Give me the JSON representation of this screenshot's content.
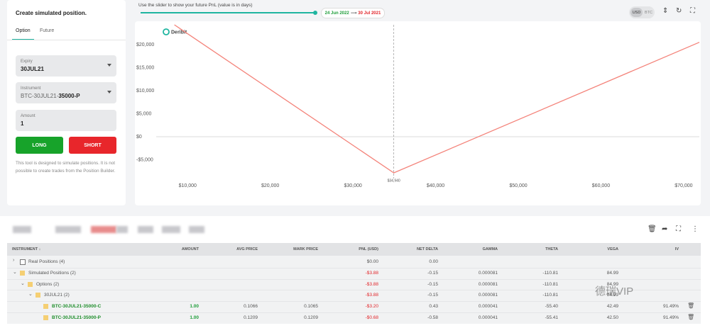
{
  "left_panel": {
    "title": "Create simulated position.",
    "tabs": [
      "Option",
      "Future"
    ],
    "fields": [
      {
        "label": "Expiry",
        "value": "30JUL21"
      },
      {
        "label": "Instrument",
        "value": [
          "BTC-30JUL21-",
          "35000-P"
        ]
      },
      {
        "label": "Amount",
        "value": 1
      }
    ],
    "buttons": [
      "LONG",
      "SHORT"
    ],
    "note": "This tool is designed to simulate positions. It is not possible to create trades from the Position Builder."
  },
  "slider": {
    "hint": "Use the slider to show your future PnL (value is in days)",
    "from": "24 Jun 2022",
    "to": "30 Jul 2021"
  },
  "currency_toggle": [
    "USD",
    "BTC"
  ],
  "chart_data": {
    "type": "line",
    "logo": "Deribit",
    "x": [
      8400,
      34940,
      71900
    ],
    "series": [
      {
        "color": "#f4837a",
        "values": [
          24300,
          -7850,
          20500
        ]
      }
    ],
    "xlim": [
      6200,
      71900
    ],
    "ylim": [
      -9080,
      24300
    ],
    "xticks": [
      {
        "value": 10000,
        "label": "$10,000"
      },
      {
        "value": 20000,
        "label": "$20,000"
      },
      {
        "value": 30000,
        "label": "$30,000"
      },
      {
        "value": 40000,
        "label": "$40,000"
      },
      {
        "value": 50000,
        "label": "$50,000"
      },
      {
        "value": 60000,
        "label": "$60,000"
      },
      {
        "value": 70000,
        "label": "$70,000"
      }
    ],
    "yticks": [
      {
        "value": 20000,
        "label": "$20,000"
      },
      {
        "value": 15000,
        "label": "$15,000"
      },
      {
        "value": 10000,
        "label": "$10,000"
      },
      {
        "value": 5000,
        "label": "$5,000"
      },
      {
        "value": 0,
        "label": "$0"
      },
      {
        "value": -5000,
        "label": "-$5,000"
      }
    ],
    "marker": {
      "value": 34940,
      "label": "$34,940"
    }
  },
  "table": {
    "columns": [
      "INSTRUMENT",
      "AMOUNT",
      "AVG PRICE",
      "MARK PRICE",
      "PNL (USD)",
      "NET DELTA",
      "GAMMA",
      "THETA",
      "VEGA",
      "IV"
    ],
    "rows": [
      {
        "label": "Real Positions (4)",
        "cells": [
          null,
          null,
          null,
          "$0.00",
          "0.00",
          null,
          null,
          null,
          null
        ]
      },
      {
        "label": "Simulated Positions (2)",
        "cells": [
          null,
          null,
          null,
          "-$3.88",
          "-0.15",
          "0.000081",
          "-110.81",
          "84.99",
          null
        ]
      },
      {
        "label": "Options (2)",
        "cells": [
          null,
          null,
          null,
          "-$3.88",
          "-0.15",
          "0.000081",
          "-110.81",
          "84.99",
          null
        ]
      },
      {
        "label": "30JUL21 (2)",
        "cells": [
          null,
          null,
          null,
          "-$3.88",
          "-0.15",
          "0.000081",
          "-110.81",
          "84.99",
          null
        ]
      },
      {
        "label": "BTC-30JUL21-35000-C",
        "cells": [
          "1.00",
          "0.1066",
          "0.1065",
          "-$3.20",
          "0.43",
          "0.000041",
          "-55.40",
          "42.49",
          "91.49%"
        ]
      },
      {
        "label": "BTC-30JUL21-35000-P",
        "cells": [
          "1.00",
          "0.1209",
          "0.1209",
          "-$0.68",
          "-0.58",
          "0.000041",
          "-55.41",
          "42.50",
          "91.49%"
        ]
      }
    ]
  },
  "watermark": "德瑞VIP"
}
